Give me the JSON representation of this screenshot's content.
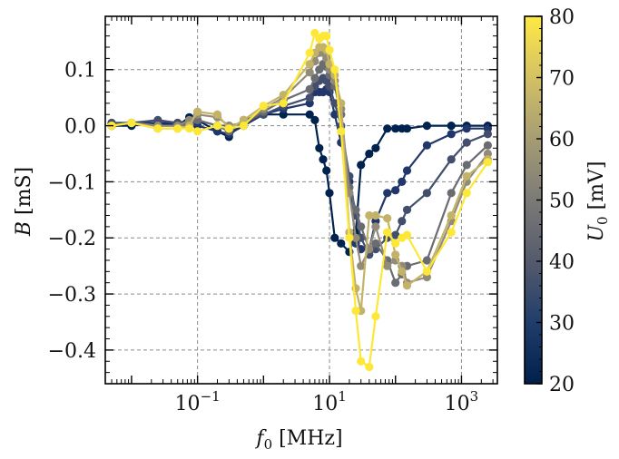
{
  "chart_data": {
    "type": "line",
    "title": "",
    "xlabel": "f0 [MHz]",
    "ylabel": "B [mS]",
    "xscale": "log",
    "xlim": [
      0.004,
      3500
    ],
    "ylim": [
      -0.46,
      0.195
    ],
    "grid": true,
    "x_ticks": [
      {
        "value": 0.1,
        "base": "10",
        "exp": "−1"
      },
      {
        "value": 10,
        "base": "10",
        "exp": "1"
      },
      {
        "value": 1000,
        "base": "10",
        "exp": "3"
      }
    ],
    "y_ticks": [
      {
        "value": 0.1,
        "label": "0.1"
      },
      {
        "value": 0.0,
        "label": "0.0"
      },
      {
        "value": -0.1,
        "label": "−0.1"
      },
      {
        "value": -0.2,
        "label": "−0.2"
      },
      {
        "value": -0.3,
        "label": "−0.3"
      },
      {
        "value": -0.4,
        "label": "−0.4"
      }
    ],
    "x": [
      0.005,
      0.01,
      0.025,
      0.05,
      0.075,
      0.1,
      0.2,
      0.3,
      0.5,
      1,
      2,
      5,
      6,
      7,
      8,
      9,
      10,
      12,
      15,
      20,
      25,
      30,
      40,
      50,
      75,
      100,
      125,
      150,
      300,
      700,
      1200,
      2500
    ],
    "colorbar": {
      "label": "U0 [mV]",
      "min": 20,
      "max": 80,
      "ticks": [
        20,
        30,
        40,
        50,
        60,
        70,
        80
      ],
      "colormap": "cividis",
      "stops": [
        "#00204c",
        "#213d6b",
        "#555b6c",
        "#7b7a77",
        "#a59c74",
        "#d3c164",
        "#ffe945"
      ]
    },
    "series": [
      {
        "u0": 20,
        "color": "#00224e",
        "values": [
          0.0,
          0.0,
          0.005,
          0.0,
          0.015,
          0.01,
          -0.01,
          -0.02,
          0.01,
          0.02,
          0.02,
          0.02,
          0.01,
          -0.04,
          -0.06,
          -0.08,
          -0.12,
          -0.2,
          -0.21,
          -0.225,
          -0.19,
          -0.07,
          -0.05,
          -0.04,
          -0.005,
          -0.005,
          -0.005,
          -0.005,
          0.0,
          0.0,
          0.0,
          0.0
        ]
      },
      {
        "u0": 30,
        "color": "#21366b",
        "values": [
          0.005,
          0.005,
          0.005,
          0.005,
          0.0,
          0.0,
          -0.01,
          -0.015,
          0.0,
          0.02,
          0.03,
          0.04,
          0.06,
          0.06,
          0.06,
          0.065,
          0.06,
          0.02,
          -0.03,
          -0.1,
          -0.21,
          -0.22,
          -0.22,
          -0.17,
          -0.12,
          -0.115,
          -0.1,
          -0.08,
          -0.035,
          -0.015,
          -0.005,
          -0.005
        ]
      },
      {
        "u0": 40,
        "color": "#434e6c",
        "values": [
          0.005,
          0.005,
          0.01,
          0.005,
          0.0,
          0.01,
          0.0,
          0.0,
          0.005,
          0.02,
          0.035,
          0.05,
          0.07,
          0.08,
          0.085,
          0.08,
          0.07,
          0.04,
          0.0,
          -0.09,
          -0.16,
          -0.2,
          -0.23,
          -0.22,
          -0.2,
          -0.195,
          -0.17,
          -0.15,
          -0.12,
          -0.06,
          -0.03,
          -0.015
        ]
      },
      {
        "u0": 50,
        "color": "#6a6c72",
        "values": [
          0.0,
          0.005,
          0.0,
          0.0,
          0.005,
          0.01,
          0.0,
          -0.01,
          0.005,
          0.025,
          0.045,
          0.065,
          0.085,
          0.1,
          0.11,
          0.105,
          0.09,
          0.07,
          0.02,
          -0.11,
          -0.15,
          -0.18,
          -0.22,
          -0.21,
          -0.24,
          -0.28,
          -0.265,
          -0.25,
          -0.24,
          -0.12,
          -0.07,
          -0.035
        ]
      },
      {
        "u0": 60,
        "color": "#928b78",
        "values": [
          0.0,
          0.005,
          0.0,
          0.0,
          0.01,
          0.02,
          0.015,
          0.0,
          0.005,
          0.03,
          0.05,
          0.095,
          0.115,
          0.13,
          0.13,
          0.12,
          0.1,
          0.08,
          0.03,
          -0.12,
          -0.2,
          -0.25,
          -0.22,
          -0.18,
          -0.25,
          -0.24,
          -0.25,
          -0.28,
          -0.27,
          -0.17,
          -0.1,
          -0.05
        ]
      },
      {
        "u0": 70,
        "color": "#c3b369",
        "values": [
          0.0,
          0.005,
          -0.005,
          -0.005,
          0.0,
          0.025,
          0.02,
          -0.005,
          0.01,
          0.035,
          0.055,
          0.11,
          0.13,
          0.14,
          0.14,
          0.135,
          0.11,
          0.09,
          0.04,
          -0.19,
          -0.29,
          -0.33,
          -0.16,
          -0.16,
          -0.165,
          -0.23,
          -0.26,
          -0.285,
          -0.26,
          -0.16,
          -0.09,
          -0.06
        ]
      },
      {
        "u0": 80,
        "color": "#fde737",
        "values": [
          0.0,
          0.005,
          -0.005,
          -0.005,
          -0.005,
          -0.01,
          0.0,
          -0.005,
          0.0,
          0.035,
          0.04,
          0.13,
          0.165,
          0.155,
          0.16,
          0.16,
          0.135,
          0.1,
          -0.01,
          -0.2,
          -0.33,
          -0.42,
          -0.43,
          -0.34,
          -0.19,
          -0.21,
          -0.2,
          -0.195,
          -0.26,
          -0.19,
          -0.12,
          -0.065
        ]
      }
    ]
  }
}
